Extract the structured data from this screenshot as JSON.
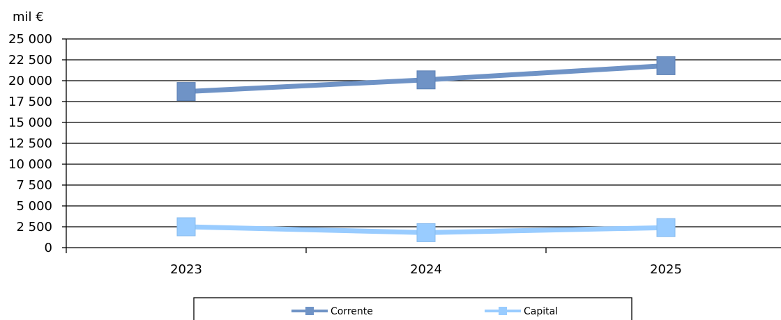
{
  "chart_data": {
    "type": "line",
    "ylabel": "mil €",
    "categories": [
      "2023",
      "2024",
      "2025"
    ],
    "ylim": [
      0,
      25000
    ],
    "yticks": [
      0,
      2500,
      5000,
      7500,
      10000,
      12500,
      15000,
      17500,
      20000,
      22500,
      25000
    ],
    "ytick_labels": [
      "0",
      "2 500",
      "5 000",
      "7 500",
      "10 000",
      "12 500",
      "15 000",
      "17 500",
      "20 000",
      "22 500",
      "25 000"
    ],
    "grid": true,
    "legend_position": "bottom",
    "series": [
      {
        "name": "Corrente",
        "values": [
          18700,
          20100,
          21800
        ],
        "color": "#6F93C6"
      },
      {
        "name": "Capital",
        "values": [
          2500,
          1800,
          2400
        ],
        "color": "#99CCFF"
      }
    ]
  }
}
